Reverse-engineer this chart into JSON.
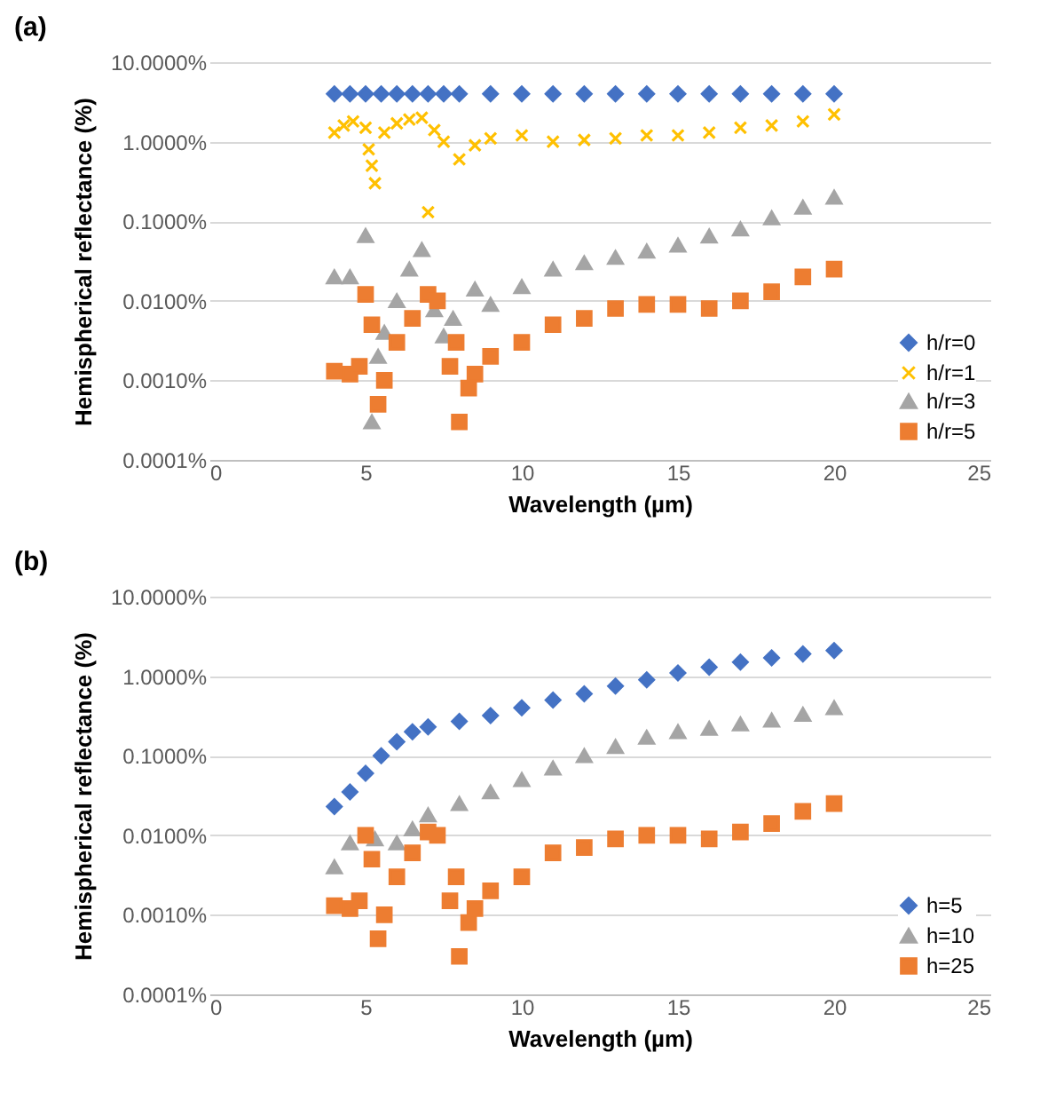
{
  "chart_data": [
    {
      "type": "scatter",
      "title": "(a)",
      "xlabel": "Wavelength (µm)",
      "ylabel": "Hemispherical reflectance (%)",
      "log": "y",
      "grid": "y",
      "legend": "bottom right",
      "xlim": [
        0,
        25
      ],
      "xticks": [
        0,
        5,
        10,
        15,
        20,
        25
      ],
      "ylim": [
        0.0001,
        10
      ],
      "yticks": [
        {
          "value": 10,
          "label": "10.0000%"
        },
        {
          "value": 1,
          "label": "1.0000%"
        },
        {
          "value": 0.1,
          "label": "0.1000%"
        },
        {
          "value": 0.01,
          "label": "0.0100%"
        },
        {
          "value": 0.001,
          "label": "0.0010%"
        },
        {
          "value": 0.0001,
          "label": "0.0001%"
        }
      ],
      "series": [
        {
          "name": "h/r=0",
          "color": "#4472c4",
          "marker": "diamond",
          "x": [
            4,
            4.5,
            5,
            5.5,
            6,
            6.5,
            7,
            7.5,
            8,
            9,
            10,
            11,
            12,
            13,
            14,
            15,
            16,
            17,
            18,
            19,
            20
          ],
          "values": [
            4,
            4,
            4,
            4,
            4,
            4,
            4,
            4,
            4,
            4,
            4,
            4,
            4,
            4,
            4,
            4,
            4,
            4,
            4,
            4,
            4
          ]
        },
        {
          "name": "h/r=1",
          "color": "#ffc000",
          "marker": "cross",
          "x": [
            4,
            4.3,
            4.6,
            5,
            5.1,
            5.2,
            5.3,
            5.6,
            6,
            6.4,
            6.8,
            7,
            7.2,
            7.5,
            8,
            8.5,
            9,
            10,
            11,
            12,
            13,
            14,
            15,
            16,
            17,
            18,
            19,
            20
          ],
          "values": [
            1.3,
            1.6,
            1.8,
            1.5,
            0.8,
            0.5,
            0.3,
            1.3,
            1.7,
            1.9,
            2,
            0.13,
            1.4,
            1,
            0.6,
            0.9,
            1.1,
            1.2,
            1,
            1.05,
            1.1,
            1.2,
            1.2,
            1.3,
            1.5,
            1.6,
            1.8,
            2.2
          ]
        },
        {
          "name": "h/r=3",
          "color": "#a5a5a5",
          "marker": "triangle",
          "x": [
            4,
            4.5,
            5,
            5.2,
            5.4,
            5.6,
            6,
            6.4,
            6.8,
            7.2,
            7.5,
            7.8,
            8.5,
            9,
            10,
            11,
            12,
            13,
            14,
            15,
            16,
            17,
            18,
            19,
            20
          ],
          "values": [
            0.02,
            0.02,
            0.066,
            0.0003,
            0.002,
            0.004,
            0.01,
            0.025,
            0.044,
            0.0077,
            0.0036,
            0.006,
            0.014,
            0.009,
            0.015,
            0.025,
            0.03,
            0.035,
            0.042,
            0.05,
            0.065,
            0.08,
            0.11,
            0.15,
            0.2
          ]
        },
        {
          "name": "h/r=5",
          "color": "#ed7d31",
          "marker": "square",
          "x": [
            4,
            4.5,
            4.8,
            5,
            5.2,
            5.4,
            5.6,
            6,
            6.5,
            7,
            7.3,
            7.7,
            7.9,
            8,
            8.3,
            8.5,
            9,
            10,
            11,
            12,
            13,
            14,
            15,
            16,
            17,
            18,
            19,
            20
          ],
          "values": [
            0.0013,
            0.0012,
            0.0015,
            0.012,
            0.005,
            0.0005,
            0.001,
            0.003,
            0.006,
            0.012,
            0.01,
            0.0015,
            0.003,
            0.0003,
            0.0008,
            0.0012,
            0.002,
            0.003,
            0.005,
            0.006,
            0.008,
            0.009,
            0.009,
            0.008,
            0.01,
            0.013,
            0.02,
            0.025
          ]
        }
      ]
    },
    {
      "type": "scatter",
      "title": "(b)",
      "xlabel": "Wavelength (µm)",
      "ylabel": "Hemispherical reflectance (%)",
      "log": "y",
      "grid": "y",
      "legend": "bottom right",
      "xlim": [
        0,
        25
      ],
      "xticks": [
        0,
        5,
        10,
        15,
        20,
        25
      ],
      "ylim": [
        0.0001,
        10
      ],
      "yticks": [
        {
          "value": 10,
          "label": "10.0000%"
        },
        {
          "value": 1,
          "label": "1.0000%"
        },
        {
          "value": 0.1,
          "label": "0.1000%"
        },
        {
          "value": 0.01,
          "label": "0.0100%"
        },
        {
          "value": 0.001,
          "label": "0.0010%"
        },
        {
          "value": 0.0001,
          "label": "0.0001%"
        }
      ],
      "series": [
        {
          "name": "h=5",
          "color": "#4472c4",
          "marker": "diamond",
          "x": [
            4,
            4.5,
            5,
            5.5,
            6,
            6.5,
            7,
            8,
            9,
            10,
            11,
            12,
            13,
            14,
            15,
            16,
            17,
            18,
            19,
            20
          ],
          "values": [
            0.023,
            0.035,
            0.06,
            0.1,
            0.15,
            0.2,
            0.23,
            0.27,
            0.32,
            0.4,
            0.5,
            0.6,
            0.75,
            0.9,
            1.1,
            1.3,
            1.5,
            1.7,
            1.9,
            2.1
          ]
        },
        {
          "name": "h=10",
          "color": "#a5a5a5",
          "marker": "triangle",
          "x": [
            4,
            4.5,
            5.3,
            6,
            6.5,
            7,
            8,
            9,
            10,
            11,
            12,
            13,
            14,
            15,
            16,
            17,
            18,
            19,
            20
          ],
          "values": [
            0.004,
            0.008,
            0.009,
            0.008,
            0.012,
            0.018,
            0.025,
            0.035,
            0.05,
            0.07,
            0.1,
            0.13,
            0.17,
            0.2,
            0.22,
            0.25,
            0.28,
            0.33,
            0.4
          ]
        },
        {
          "name": "h=25",
          "color": "#ed7d31",
          "marker": "square",
          "x": [
            4,
            4.5,
            4.8,
            5,
            5.2,
            5.4,
            5.6,
            6,
            6.5,
            7,
            7.3,
            7.7,
            7.9,
            8,
            8.3,
            8.5,
            9,
            10,
            11,
            12,
            13,
            14,
            15,
            16,
            17,
            18,
            19,
            20
          ],
          "values": [
            0.0013,
            0.0012,
            0.0015,
            0.01,
            0.005,
            0.0005,
            0.001,
            0.003,
            0.006,
            0.011,
            0.01,
            0.0015,
            0.003,
            0.0003,
            0.0008,
            0.0012,
            0.002,
            0.003,
            0.006,
            0.007,
            0.009,
            0.01,
            0.01,
            0.009,
            0.011,
            0.014,
            0.02,
            0.025
          ]
        }
      ]
    }
  ]
}
